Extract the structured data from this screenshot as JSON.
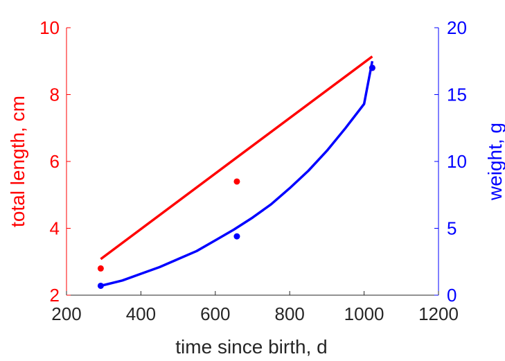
{
  "chart_data": {
    "type": "scatter",
    "title": "",
    "xlabel": "time since birth, d",
    "ylabel_left": "total length, cm",
    "ylabel_right": "weight, g",
    "xlim": [
      200,
      1200
    ],
    "ylim_left": [
      2,
      10
    ],
    "ylim_right": [
      0,
      20
    ],
    "xticks": [
      "200",
      "400",
      "600",
      "800",
      "1000",
      "1200"
    ],
    "yticks_left": [
      "2",
      "4",
      "6",
      "8",
      "10"
    ],
    "yticks_right": [
      "0",
      "5",
      "10",
      "15",
      "20"
    ],
    "grid": false,
    "colors": {
      "left_axis": "#ff0000",
      "right_axis": "#0000ff",
      "x_axis": "#262626"
    },
    "series": [
      {
        "axis": "left",
        "color": "#ff0000",
        "points": [
          {
            "x": 292,
            "y": 2.8
          },
          {
            "x": 658,
            "y": 5.4
          },
          {
            "x": 1022,
            "y": 8.8
          }
        ],
        "fit_curve": [
          {
            "x": 292,
            "y": 3.08
          },
          {
            "x": 658,
            "y": 6.12
          },
          {
            "x": 1022,
            "y": 9.14
          }
        ]
      },
      {
        "axis": "right",
        "color": "#0000ff",
        "points": [
          {
            "x": 292,
            "y": 0.7
          },
          {
            "x": 658,
            "y": 4.4
          },
          {
            "x": 1022,
            "y": 17.0
          }
        ],
        "fit_curve": [
          {
            "x": 292,
            "y": 0.7
          },
          {
            "x": 350,
            "y": 1.1
          },
          {
            "x": 400,
            "y": 1.6
          },
          {
            "x": 450,
            "y": 2.1
          },
          {
            "x": 500,
            "y": 2.7
          },
          {
            "x": 550,
            "y": 3.3
          },
          {
            "x": 600,
            "y": 4.1
          },
          {
            "x": 650,
            "y": 4.9
          },
          {
            "x": 700,
            "y": 5.8
          },
          {
            "x": 750,
            "y": 6.8
          },
          {
            "x": 800,
            "y": 8.0
          },
          {
            "x": 850,
            "y": 9.3
          },
          {
            "x": 900,
            "y": 10.8
          },
          {
            "x": 950,
            "y": 12.5
          },
          {
            "x": 1000,
            "y": 14.3
          },
          {
            "x": 1022,
            "y": 17.5
          }
        ]
      }
    ]
  }
}
